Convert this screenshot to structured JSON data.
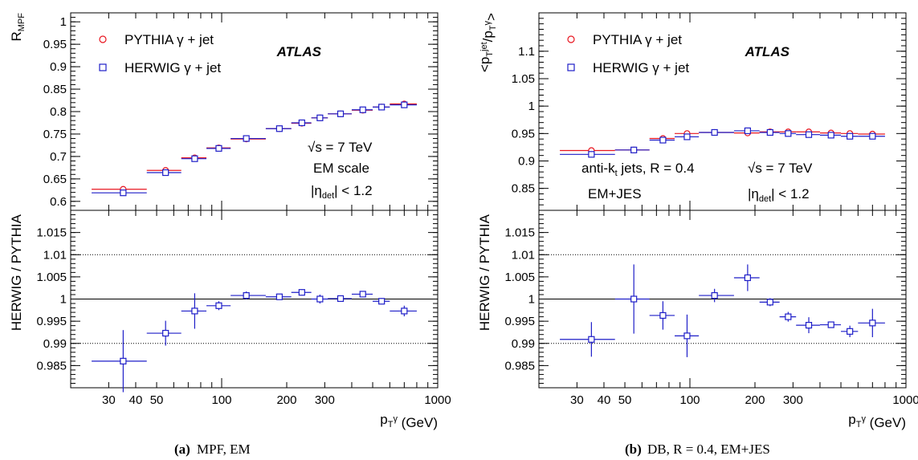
{
  "chart_data": [
    {
      "panel": "a",
      "type": "scatter",
      "caption_letter": "(a)",
      "caption_text": "MPF, EM",
      "ylabel": "R_MPF",
      "ratio_ylabel": "HERWIG / PYTHIA",
      "xlabel": "p_T^γ (GeV)",
      "x_scale": "log",
      "xlim": [
        20,
        1000
      ],
      "ylim": [
        0.58,
        1.02
      ],
      "ratio_ylim": [
        0.98,
        1.02
      ],
      "y_ticks": [
        "0.6",
        "0.65",
        "0.7",
        "0.75",
        "0.8",
        "0.85",
        "0.9",
        "0.95",
        "1"
      ],
      "ratio_ticks": [
        "0.985",
        "0.99",
        "0.995",
        "1",
        "1.005",
        "1.01",
        "1.015"
      ],
      "x_ticks": [
        "30",
        "40",
        "50",
        "100",
        "200",
        "300",
        "1000"
      ],
      "legend_placement": "top-left",
      "experiment_label": "ATLAS",
      "annotations": [
        "√s = 7 TeV",
        "EM scale",
        "|η_det| < 1.2"
      ],
      "bins": [
        [
          25,
          45
        ],
        [
          45,
          65
        ],
        [
          65,
          85
        ],
        [
          85,
          110
        ],
        [
          110,
          160
        ],
        [
          160,
          210
        ],
        [
          210,
          260
        ],
        [
          260,
          310
        ],
        [
          310,
          400
        ],
        [
          400,
          500
        ],
        [
          500,
          600
        ],
        [
          600,
          800
        ]
      ],
      "series": [
        {
          "name": "PYTHIA  γ + jet",
          "color": "#e8141e",
          "marker": "circle",
          "x": [
            35,
            55,
            75,
            97,
            130,
            185,
            235,
            285,
            355,
            450,
            550,
            700
          ],
          "values": [
            0.627,
            0.669,
            0.697,
            0.719,
            0.739,
            0.762,
            0.774,
            0.786,
            0.795,
            0.803,
            0.81,
            0.817
          ]
        },
        {
          "name": "HERWIG  γ + jet",
          "color": "#1e1ec8",
          "marker": "square",
          "x": [
            35,
            55,
            75,
            97,
            130,
            185,
            235,
            285,
            355,
            450,
            550,
            700
          ],
          "values": [
            0.619,
            0.664,
            0.695,
            0.718,
            0.74,
            0.762,
            0.775,
            0.786,
            0.795,
            0.804,
            0.81,
            0.815
          ]
        }
      ],
      "ratio": {
        "x": [
          35,
          55,
          75,
          97,
          130,
          185,
          235,
          285,
          355,
          450,
          550,
          700
        ],
        "values": [
          0.986,
          0.9923,
          0.9973,
          0.9985,
          1.0008,
          1.0005,
          1.0015,
          1.0,
          1.0001,
          1.0011,
          0.9995,
          0.9973
        ],
        "errors": [
          0.007,
          0.0028,
          0.004,
          0.001,
          0.0009,
          0.0006,
          0.0007,
          0.001,
          0.0006,
          0.0007,
          0.0007,
          0.0012
        ]
      }
    },
    {
      "panel": "b",
      "type": "scatter",
      "caption_letter": "(b)",
      "caption_text": "DB, R = 0.4, EM+JES",
      "ylabel": "<p_T^jet/p_T^γ>",
      "ratio_ylabel": "HERWIG / PYTHIA",
      "xlabel": "p_T^γ (GeV)",
      "x_scale": "log",
      "xlim": [
        20,
        1000
      ],
      "ylim": [
        0.81,
        1.17
      ],
      "ratio_ylim": [
        0.98,
        1.02
      ],
      "y_ticks": [
        "0.85",
        "0.9",
        "0.95",
        "1",
        "1.05",
        "1.1"
      ],
      "ratio_ticks": [
        "0.985",
        "0.99",
        "0.995",
        "1",
        "1.005",
        "1.01",
        "1.015"
      ],
      "x_ticks": [
        "30",
        "40",
        "50",
        "100",
        "200",
        "300",
        "1000"
      ],
      "legend_placement": "top-left",
      "experiment_label": "ATLAS",
      "annotations": [
        "anti-k_t jets, R = 0.4",
        "√s = 7 TeV",
        "EM+JES",
        "|η_det| < 1.2"
      ],
      "bins": [
        [
          25,
          45
        ],
        [
          45,
          65
        ],
        [
          65,
          85
        ],
        [
          85,
          110
        ],
        [
          110,
          160
        ],
        [
          160,
          210
        ],
        [
          210,
          260
        ],
        [
          260,
          310
        ],
        [
          310,
          400
        ],
        [
          400,
          500
        ],
        [
          500,
          600
        ],
        [
          600,
          800
        ]
      ],
      "series": [
        {
          "name": "PYTHIA  γ + jet",
          "color": "#e8141e",
          "marker": "circle",
          "x": [
            35,
            55,
            75,
            97,
            130,
            185,
            235,
            285,
            355,
            450,
            550,
            700
          ],
          "values": [
            0.919,
            0.92,
            0.941,
            0.95,
            0.952,
            0.951,
            0.953,
            0.953,
            0.953,
            0.951,
            0.95,
            0.949
          ]
        },
        {
          "name": "HERWIG  γ + jet",
          "color": "#1e1ec8",
          "marker": "square",
          "x": [
            35,
            55,
            75,
            97,
            130,
            185,
            235,
            285,
            355,
            450,
            550,
            700
          ],
          "values": [
            0.912,
            0.92,
            0.938,
            0.944,
            0.952,
            0.955,
            0.952,
            0.95,
            0.948,
            0.947,
            0.945,
            0.945
          ]
        }
      ],
      "ratio": {
        "x": [
          35,
          55,
          75,
          97,
          130,
          185,
          235,
          285,
          355,
          450,
          550,
          700
        ],
        "values": [
          0.9909,
          1.0,
          0.9963,
          0.9917,
          1.0008,
          1.0048,
          0.9993,
          0.996,
          0.9941,
          0.9942,
          0.9927,
          0.9946
        ],
        "errors": [
          0.0039,
          0.0078,
          0.0032,
          0.0048,
          0.0015,
          0.003,
          0.0009,
          0.0011,
          0.0018,
          0.0007,
          0.0013,
          0.0032
        ]
      }
    }
  ]
}
